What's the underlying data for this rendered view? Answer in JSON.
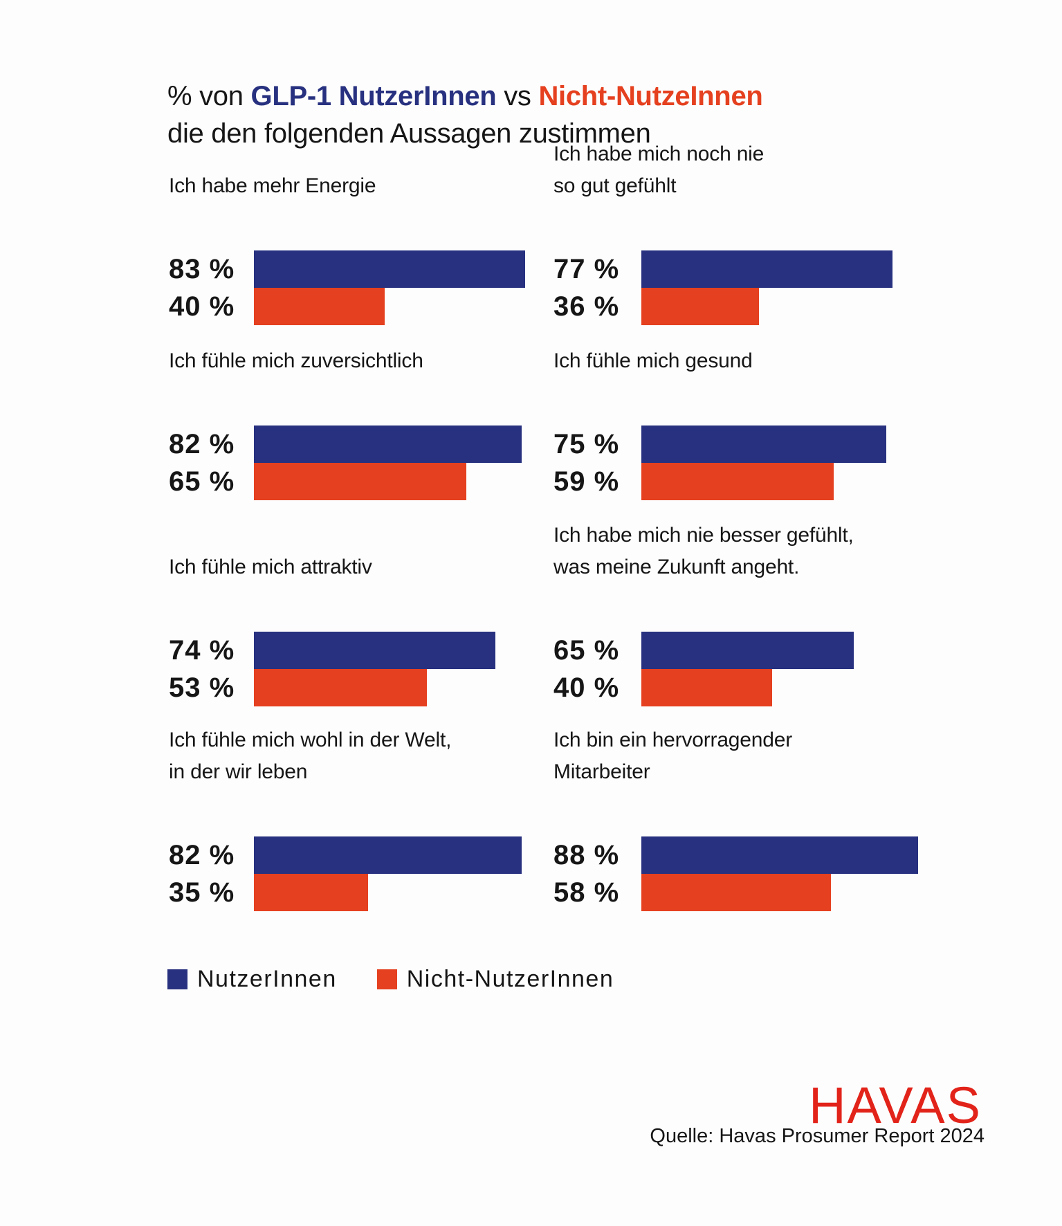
{
  "header": {
    "prefix": "% von ",
    "group_a": "GLP-1 NutzerInnen",
    "vs": " vs ",
    "group_b": "Nicht-NutzeInnen",
    "line2": "die den folgenden Aussagen zustimmen"
  },
  "colors": {
    "users": "#27317f",
    "non_users": "#e5401f",
    "logo": "#e2231a",
    "text": "#161616"
  },
  "legend": [
    {
      "label": "NutzerInnen",
      "color": "#27317f"
    },
    {
      "label": "Nicht-NutzerInnen",
      "color": "#e5401f"
    }
  ],
  "logo": "HAVAS",
  "source": "Quelle: Havas Prosumer Report 2024",
  "chart_data": {
    "type": "bar",
    "title": "% von GLP-1 NutzerInnen vs Nicht-NutzeInnen die den folgenden Aussagen zustimmen",
    "xlabel": "",
    "ylabel": "",
    "unit": "%",
    "legend_position": "bottom-left",
    "categories": [
      "Ich habe mehr Energie",
      "Ich habe mich noch nie so gut gefühlt",
      "Ich fühle mich zuversichtlich",
      "Ich fühle mich gesund",
      "Ich fühle mich attraktiv",
      "Ich habe mich nie besser gefühlt, was meine Zukunft angeht.",
      "Ich fühle mich wohl in der Welt, in der wir leben",
      "Ich bin ein hervorragender Mitarbeiter"
    ],
    "category_lines": [
      "Ich habe mehr Energie",
      "Ich habe mich noch nie\nso gut gefühlt",
      "Ich fühle mich zuversichtlich",
      "Ich fühle mich gesund",
      "Ich fühle mich attraktiv",
      "Ich habe mich nie besser gefühlt,\nwas meine Zukunft angeht.",
      "Ich fühle mich wohl in der Welt,\nin der wir leben",
      "Ich bin ein hervorragender\nMitarbeiter"
    ],
    "series": [
      {
        "name": "NutzerInnen",
        "values": [
          83,
          77,
          82,
          75,
          74,
          65,
          82,
          88
        ],
        "labels": [
          "83 %",
          "77 %",
          "82 %",
          "75 %",
          "74 %",
          "65 %",
          "82 %",
          "88 %"
        ]
      },
      {
        "name": "Nicht-NutzerInnen",
        "values": [
          40,
          36,
          65,
          59,
          53,
          40,
          35,
          58
        ],
        "labels": [
          "40 %",
          "36 %",
          "65 %",
          "59 %",
          "53 %",
          "40 %",
          "35 %",
          "58 %"
        ]
      }
    ],
    "xlim": [
      0,
      100
    ],
    "grid": false
  }
}
